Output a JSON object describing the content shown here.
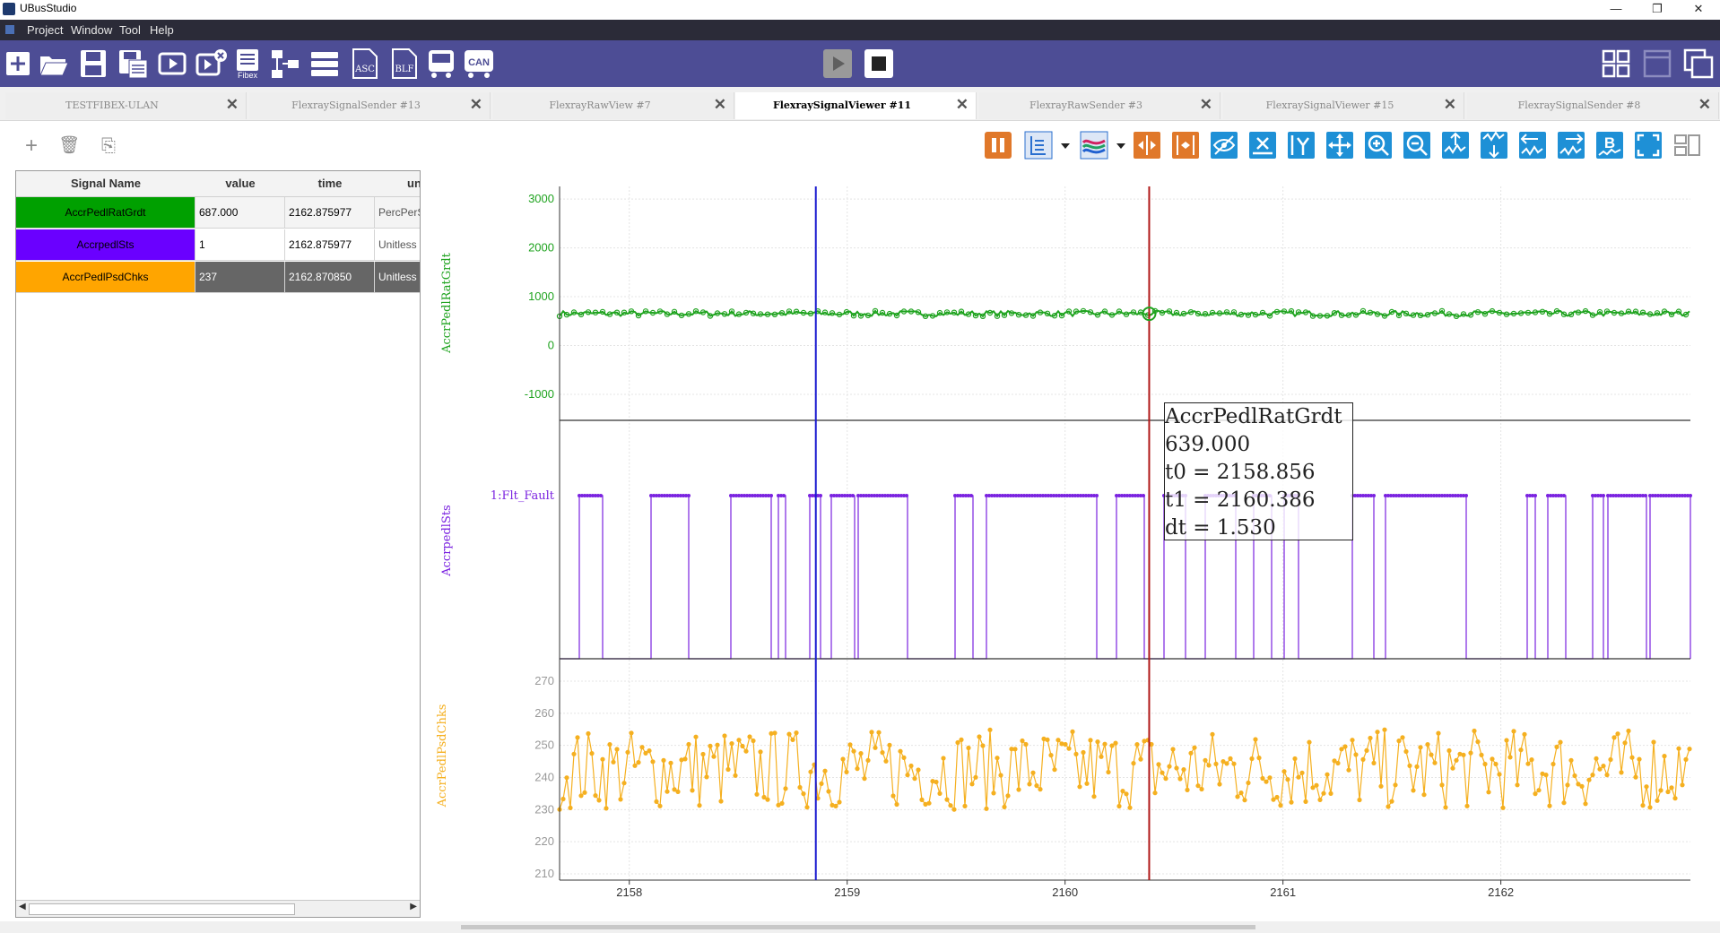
{
  "app": {
    "title": "UBusStudio",
    "window_controls": [
      "—",
      "❐",
      "✕"
    ]
  },
  "menu": [
    "Project",
    "Window",
    "Tool",
    "Help"
  ],
  "toolbar": {
    "buttons": [
      "new-project-icon",
      "open-folder-icon",
      "save-icon",
      "save-as-icon",
      "play-icon",
      "video-edit-icon",
      "fibex-icon",
      "network-icon",
      "server-icon",
      "asc-file-icon",
      "blf-file-icon",
      "bus-replay-icon",
      "can-icon"
    ],
    "fibex_label": "Fibex",
    "asc_label": "ASC",
    "blf_label": "BLF",
    "can_label": "CAN",
    "run_controls": [
      "start-icon",
      "stop-icon"
    ],
    "layout_controls": [
      "grid-layout-icon",
      "window-layout-icon",
      "cascade-layout-icon"
    ]
  },
  "tabs": [
    {
      "label": "TESTFIBEX-ULAN",
      "active": false
    },
    {
      "label": "FlexraySignalSender #13",
      "active": false
    },
    {
      "label": "FlexrayRawView #7",
      "active": false
    },
    {
      "label": "FlexraySignalViewer #11",
      "active": true
    },
    {
      "label": "FlexrayRawSender #3",
      "active": false
    },
    {
      "label": "FlexraySignalViewer #15",
      "active": false
    },
    {
      "label": "FlexraySignalSender #8",
      "active": false
    }
  ],
  "left_tools": {
    "add": "+",
    "delete": "🗑",
    "import": "⎘"
  },
  "table": {
    "columns": [
      "Signal Name",
      "value",
      "time",
      "unit"
    ],
    "rows": [
      {
        "name": "AccrPedlRatGrdt",
        "value": "687.000",
        "time": "2162.875977",
        "unit": "PercPerSec",
        "color": "#00a000",
        "selected": false
      },
      {
        "name": "AccrpedlSts",
        "value": "1",
        "time": "2162.875977",
        "unit": "Unitless",
        "color": "#6a00ff",
        "selected": false
      },
      {
        "name": "AccrPedlPsdChks",
        "value": "237",
        "time": "2162.870850",
        "unit": "Unitless",
        "color": "#ffa500",
        "selected": true
      }
    ]
  },
  "chart_tools": [
    "pause-icon",
    "legend-icon",
    "color-wave-icon",
    "fit-x-icon",
    "fit-all-icon",
    "hide-icon",
    "x-axis-icon",
    "y-axis-icon",
    "move-icon",
    "zoom-in-icon",
    "zoom-out-icon",
    "expand-up-icon",
    "expand-down-icon",
    "shift-left-icon",
    "shift-right-icon",
    "bold-b-icon",
    "fullscreen-icon",
    "split-view-icon"
  ],
  "chart_data": [
    {
      "type": "line",
      "ylabel": "AccrPedlRatGrdt",
      "ylim": [
        -1350,
        3150
      ],
      "yticks": [
        3000,
        2000,
        1000,
        0,
        -1000
      ],
      "series": [
        {
          "name": "AccrPedlRatGrdt",
          "color": "#1fa31f",
          "approx_value": 650,
          "range": [
            600,
            710
          ]
        }
      ]
    },
    {
      "type": "line",
      "ylabel": "AccrpedlSts",
      "ytick_labels": [
        "1:Flt_Fault"
      ],
      "series": [
        {
          "name": "AccrpedlSts",
          "color": "#7a22e0",
          "states": [
            0,
            1
          ]
        }
      ]
    },
    {
      "type": "line",
      "ylabel": "AccrPedlPsdChks",
      "ylim": [
        208,
        276
      ],
      "yticks": [
        270,
        260,
        250,
        240,
        230,
        220,
        210
      ],
      "series": [
        {
          "name": "AccrPedlPsdChks",
          "color": "#f5b020",
          "range": [
            230,
            255
          ]
        }
      ]
    }
  ],
  "x_axis": {
    "ticks": [
      2158,
      2159,
      2160,
      2161,
      2162
    ],
    "xlim": [
      2157.68,
      2162.87
    ]
  },
  "cursors": [
    {
      "name": "t0",
      "x": 2158.856,
      "color": "#1a1ad0"
    },
    {
      "name": "t1",
      "x": 2160.386,
      "color": "#b01818"
    }
  ],
  "readout": {
    "signal": "AccrPedlRatGrdt",
    "value": "639.000",
    "t0": "t0 = 2158.856",
    "t1": "t1 = 2160.386",
    "dt": "dt = 1.530"
  }
}
